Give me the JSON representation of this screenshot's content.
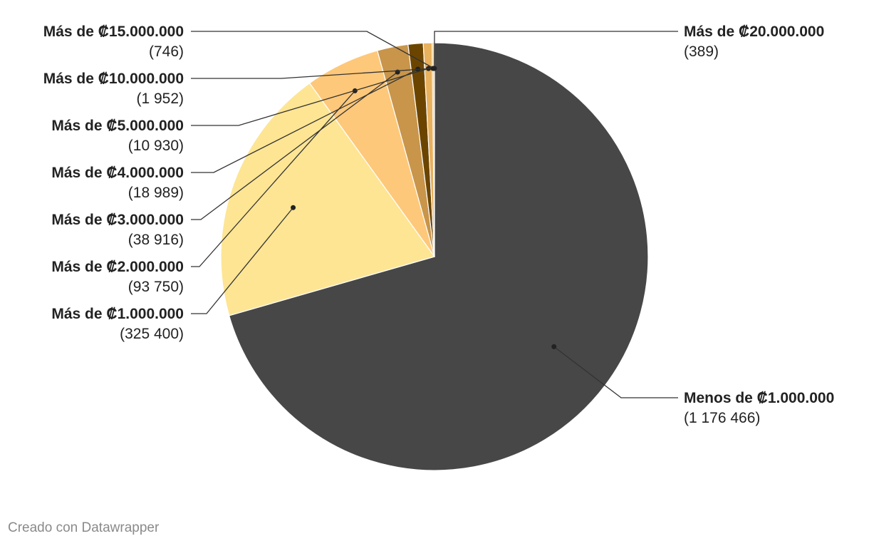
{
  "chart_data": {
    "type": "pie",
    "categories": [
      "Menos de ₡1.000.000",
      "Más de ₡1.000.000",
      "Más de ₡2.000.000",
      "Más de ₡3.000.000",
      "Más de ₡4.000.000",
      "Más de ₡5.000.000",
      "Más de ₡10.000.000",
      "Más de ₡15.000.000",
      "Más de ₡20.000.000"
    ],
    "values": [
      1176466,
      325400,
      93750,
      38916,
      18989,
      10930,
      1952,
      746,
      389
    ],
    "value_labels": [
      "1 176 466",
      "325 400",
      "93 750",
      "38 916",
      "18 989",
      "10 930",
      "1 952",
      "746",
      "389"
    ],
    "colors": [
      "#474747",
      "#fde594",
      "#fec87a",
      "#c8954a",
      "#6b4500",
      "#e8b15e",
      "#f4d49a",
      "#d9b071",
      "#bfbfbf"
    ],
    "start_angle_deg": 0,
    "direction": "clockwise",
    "legend": "none"
  },
  "footer": {
    "credit": "Creado con Datawrapper"
  }
}
